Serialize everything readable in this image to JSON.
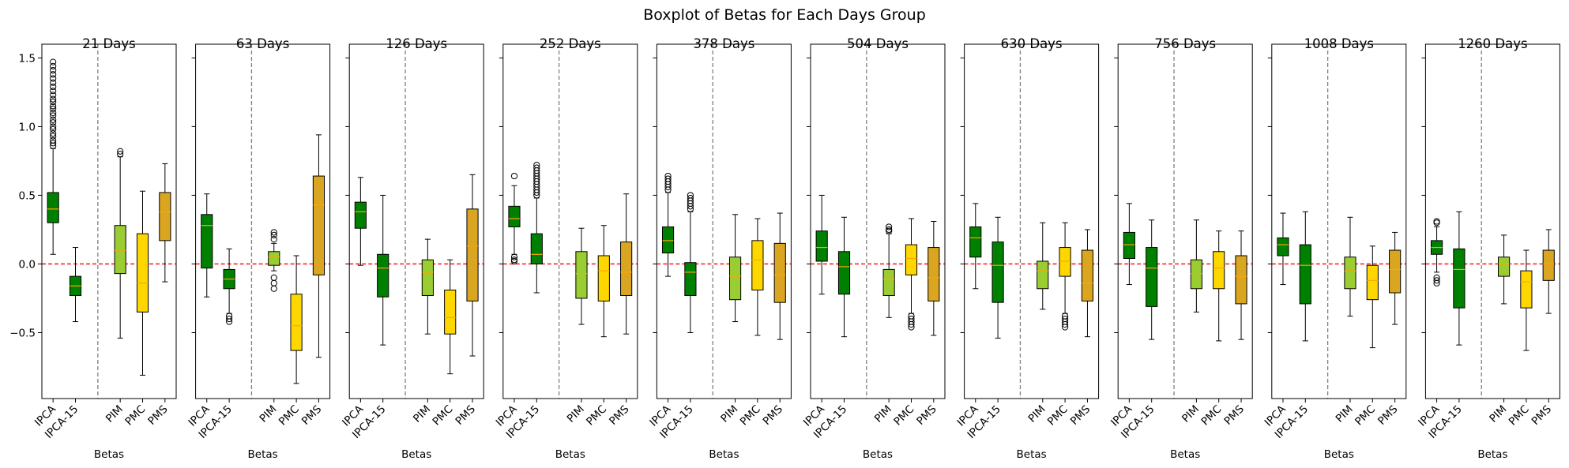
{
  "figure": {
    "title": "Boxplot of Betas for Each Days Group"
  },
  "colors": {
    "IPCA": "#008000",
    "IPCA-15": "#008000",
    "PIM": "#9ACD32",
    "PMC": "#FFD700",
    "PMS": "#DAA520",
    "median": "#FFA500",
    "zero_line": "#FF0000",
    "divider": "#808080"
  },
  "chart_data": {
    "type": "boxplot",
    "shared_y": true,
    "ylim": [
      -0.98,
      1.6
    ],
    "yticks": [
      -0.5,
      0.0,
      0.5,
      1.0,
      1.5
    ],
    "ytick_labels": [
      "−0.5",
      "0.0",
      "0.5",
      "1.0",
      "1.5"
    ],
    "categories": [
      "IPCA",
      "IPCA-15",
      "PIM",
      "PMC",
      "PMS"
    ],
    "xlabel": "Betas",
    "zero_line": 0,
    "panels": [
      {
        "title": "21 Days",
        "boxes": [
          {
            "name": "IPCA",
            "whislo": 0.07,
            "q1": 0.3,
            "med": 0.4,
            "q3": 0.52,
            "whishi": 0.84,
            "fliers_low": [],
            "fliers_high": [
              0.86,
              0.88,
              0.9,
              0.93,
              0.95,
              0.98,
              1.0,
              1.03,
              1.05,
              1.08,
              1.1,
              1.13,
              1.15,
              1.18,
              1.2,
              1.23,
              1.26,
              1.29,
              1.32,
              1.35,
              1.38,
              1.41,
              1.44,
              1.47
            ]
          },
          {
            "name": "IPCA-15",
            "whislo": -0.42,
            "q1": -0.23,
            "med": -0.16,
            "q3": -0.09,
            "whishi": 0.12,
            "fliers_low": [],
            "fliers_high": []
          },
          {
            "name": "PIM",
            "whislo": -0.54,
            "q1": -0.07,
            "med": 0.1,
            "q3": 0.28,
            "whishi": 0.78,
            "fliers_low": [],
            "fliers_high": [
              0.8,
              0.82
            ]
          },
          {
            "name": "PMC",
            "whislo": -0.81,
            "q1": -0.35,
            "med": -0.14,
            "q3": 0.22,
            "whishi": 0.53,
            "fliers_low": [],
            "fliers_high": []
          },
          {
            "name": "PMS",
            "whislo": -0.13,
            "q1": 0.17,
            "med": 0.38,
            "q3": 0.52,
            "whishi": 0.73,
            "fliers_low": [],
            "fliers_high": []
          }
        ]
      },
      {
        "title": "63 Days",
        "boxes": [
          {
            "name": "IPCA",
            "whislo": -0.24,
            "q1": -0.03,
            "med": 0.28,
            "q3": 0.36,
            "whishi": 0.51,
            "fliers_low": [],
            "fliers_high": []
          },
          {
            "name": "IPCA-15",
            "whislo": -0.36,
            "q1": -0.18,
            "med": -0.11,
            "q3": -0.04,
            "whishi": 0.11,
            "fliers_low": [
              -0.38,
              -0.4,
              -0.42
            ],
            "fliers_high": []
          },
          {
            "name": "PIM",
            "whislo": -0.05,
            "q1": -0.01,
            "med": 0.05,
            "q3": 0.09,
            "whishi": 0.15,
            "fliers_low": [
              -0.1,
              -0.14,
              -0.18
            ],
            "fliers_high": [
              0.18,
              0.21,
              0.23
            ]
          },
          {
            "name": "PMC",
            "whislo": -0.87,
            "q1": -0.63,
            "med": -0.45,
            "q3": -0.22,
            "whishi": 0.06,
            "fliers_low": [],
            "fliers_high": []
          },
          {
            "name": "PMS",
            "whislo": -0.68,
            "q1": -0.08,
            "med": 0.43,
            "q3": 0.64,
            "whishi": 0.94,
            "fliers_low": [],
            "fliers_high": []
          }
        ]
      },
      {
        "title": "126 Days",
        "boxes": [
          {
            "name": "IPCA",
            "whislo": -0.01,
            "q1": 0.26,
            "med": 0.38,
            "q3": 0.45,
            "whishi": 0.63,
            "fliers_low": [],
            "fliers_high": []
          },
          {
            "name": "IPCA-15",
            "whislo": -0.59,
            "q1": -0.24,
            "med": -0.03,
            "q3": 0.07,
            "whishi": 0.5,
            "fliers_low": [],
            "fliers_high": []
          },
          {
            "name": "PIM",
            "whislo": -0.51,
            "q1": -0.23,
            "med": -0.06,
            "q3": 0.03,
            "whishi": 0.18,
            "fliers_low": [],
            "fliers_high": []
          },
          {
            "name": "PMC",
            "whislo": -0.8,
            "q1": -0.51,
            "med": -0.39,
            "q3": -0.19,
            "whishi": 0.03,
            "fliers_low": [],
            "fliers_high": []
          },
          {
            "name": "PMS",
            "whislo": -0.67,
            "q1": -0.27,
            "med": 0.13,
            "q3": 0.4,
            "whishi": 0.65,
            "fliers_low": [],
            "fliers_high": []
          }
        ]
      },
      {
        "title": "252 Days",
        "boxes": [
          {
            "name": "IPCA",
            "whislo": 0.07,
            "q1": 0.27,
            "med": 0.33,
            "q3": 0.42,
            "whishi": 0.57,
            "fliers_low": [
              0.05,
              0.03,
              0.02
            ],
            "fliers_high": [
              0.64
            ]
          },
          {
            "name": "IPCA-15",
            "whislo": -0.21,
            "q1": 0.0,
            "med": 0.07,
            "q3": 0.22,
            "whishi": 0.48,
            "fliers_low": [],
            "fliers_high": [
              0.5,
              0.52,
              0.54,
              0.56,
              0.58,
              0.6,
              0.62,
              0.64,
              0.66,
              0.68,
              0.7,
              0.72
            ]
          },
          {
            "name": "PIM",
            "whislo": -0.44,
            "q1": -0.25,
            "med": -0.07,
            "q3": 0.09,
            "whishi": 0.26,
            "fliers_low": [],
            "fliers_high": []
          },
          {
            "name": "PMC",
            "whislo": -0.53,
            "q1": -0.27,
            "med": -0.05,
            "q3": 0.06,
            "whishi": 0.28,
            "fliers_low": [],
            "fliers_high": []
          },
          {
            "name": "PMS",
            "whislo": -0.51,
            "q1": -0.23,
            "med": -0.06,
            "q3": 0.16,
            "whishi": 0.51,
            "fliers_low": [],
            "fliers_high": []
          }
        ]
      },
      {
        "title": "378 Days",
        "boxes": [
          {
            "name": "IPCA",
            "whislo": -0.09,
            "q1": 0.08,
            "med": 0.17,
            "q3": 0.27,
            "whishi": 0.52,
            "fliers_low": [],
            "fliers_high": [
              0.54,
              0.56,
              0.58,
              0.6,
              0.62,
              0.64
            ]
          },
          {
            "name": "IPCA-15",
            "whislo": -0.5,
            "q1": -0.23,
            "med": -0.06,
            "q3": 0.01,
            "whishi": 0.38,
            "fliers_low": [],
            "fliers_high": [
              0.4,
              0.42,
              0.44,
              0.46,
              0.48,
              0.5
            ]
          },
          {
            "name": "PIM",
            "whislo": -0.42,
            "q1": -0.26,
            "med": -0.09,
            "q3": 0.05,
            "whishi": 0.36,
            "fliers_low": [],
            "fliers_high": []
          },
          {
            "name": "PMC",
            "whislo": -0.52,
            "q1": -0.19,
            "med": 0.03,
            "q3": 0.17,
            "whishi": 0.33,
            "fliers_low": [],
            "fliers_high": []
          },
          {
            "name": "PMS",
            "whislo": -0.55,
            "q1": -0.28,
            "med": -0.08,
            "q3": 0.15,
            "whishi": 0.37,
            "fliers_low": [],
            "fliers_high": []
          }
        ]
      },
      {
        "title": "504 Days",
        "boxes": [
          {
            "name": "IPCA",
            "whislo": -0.22,
            "q1": 0.02,
            "med": 0.12,
            "q3": 0.24,
            "whishi": 0.5,
            "fliers_low": [],
            "fliers_high": []
          },
          {
            "name": "IPCA-15",
            "whislo": -0.53,
            "q1": -0.22,
            "med": -0.02,
            "q3": 0.09,
            "whishi": 0.34,
            "fliers_low": [],
            "fliers_high": []
          },
          {
            "name": "PIM",
            "whislo": -0.39,
            "q1": -0.23,
            "med": -0.11,
            "q3": -0.04,
            "whishi": 0.22,
            "fliers_low": [],
            "fliers_high": [
              0.24,
              0.25,
              0.27
            ]
          },
          {
            "name": "PMC",
            "whislo": -0.36,
            "q1": -0.08,
            "med": 0.04,
            "q3": 0.14,
            "whishi": 0.33,
            "fliers_low": [
              -0.38,
              -0.4,
              -0.42,
              -0.44,
              -0.46
            ],
            "fliers_high": []
          },
          {
            "name": "PMS",
            "whislo": -0.52,
            "q1": -0.27,
            "med": -0.1,
            "q3": 0.12,
            "whishi": 0.31,
            "fliers_low": [],
            "fliers_high": []
          }
        ]
      },
      {
        "title": "630 Days",
        "boxes": [
          {
            "name": "IPCA",
            "whislo": -0.18,
            "q1": 0.05,
            "med": 0.19,
            "q3": 0.27,
            "whishi": 0.44,
            "fliers_low": [],
            "fliers_high": []
          },
          {
            "name": "IPCA-15",
            "whislo": -0.54,
            "q1": -0.28,
            "med": -0.01,
            "q3": 0.16,
            "whishi": 0.34,
            "fliers_low": [],
            "fliers_high": []
          },
          {
            "name": "PIM",
            "whislo": -0.33,
            "q1": -0.18,
            "med": -0.05,
            "q3": 0.02,
            "whishi": 0.3,
            "fliers_low": [],
            "fliers_high": []
          },
          {
            "name": "PMC",
            "whislo": -0.36,
            "q1": -0.09,
            "med": 0.02,
            "q3": 0.12,
            "whishi": 0.3,
            "fliers_low": [
              -0.38,
              -0.4,
              -0.42,
              -0.44,
              -0.46
            ],
            "fliers_high": []
          },
          {
            "name": "PMS",
            "whislo": -0.53,
            "q1": -0.27,
            "med": -0.14,
            "q3": 0.1,
            "whishi": 0.25,
            "fliers_low": [],
            "fliers_high": []
          }
        ]
      },
      {
        "title": "756 Days",
        "boxes": [
          {
            "name": "IPCA",
            "whislo": -0.15,
            "q1": 0.04,
            "med": 0.14,
            "q3": 0.23,
            "whishi": 0.44,
            "fliers_low": [],
            "fliers_high": []
          },
          {
            "name": "IPCA-15",
            "whislo": -0.55,
            "q1": -0.31,
            "med": -0.03,
            "q3": 0.12,
            "whishi": 0.32,
            "fliers_low": [],
            "fliers_high": []
          },
          {
            "name": "PIM",
            "whislo": -0.35,
            "q1": -0.18,
            "med": -0.07,
            "q3": 0.03,
            "whishi": 0.32,
            "fliers_low": [],
            "fliers_high": []
          },
          {
            "name": "PMC",
            "whislo": -0.56,
            "q1": -0.18,
            "med": -0.03,
            "q3": 0.09,
            "whishi": 0.24,
            "fliers_low": [],
            "fliers_high": []
          },
          {
            "name": "PMS",
            "whislo": -0.55,
            "q1": -0.29,
            "med": -0.09,
            "q3": 0.06,
            "whishi": 0.24,
            "fliers_low": [],
            "fliers_high": []
          }
        ]
      },
      {
        "title": "1008 Days",
        "boxes": [
          {
            "name": "IPCA",
            "whislo": -0.15,
            "q1": 0.06,
            "med": 0.14,
            "q3": 0.19,
            "whishi": 0.37,
            "fliers_low": [],
            "fliers_high": []
          },
          {
            "name": "IPCA-15",
            "whislo": -0.56,
            "q1": -0.29,
            "med": -0.01,
            "q3": 0.14,
            "whishi": 0.38,
            "fliers_low": [],
            "fliers_high": []
          },
          {
            "name": "PIM",
            "whislo": -0.38,
            "q1": -0.18,
            "med": -0.05,
            "q3": 0.05,
            "whishi": 0.34,
            "fliers_low": [],
            "fliers_high": []
          },
          {
            "name": "PMC",
            "whislo": -0.61,
            "q1": -0.26,
            "med": -0.12,
            "q3": -0.01,
            "whishi": 0.13,
            "fliers_low": [],
            "fliers_high": []
          },
          {
            "name": "PMS",
            "whislo": -0.44,
            "q1": -0.21,
            "med": -0.04,
            "q3": 0.1,
            "whishi": 0.23,
            "fliers_low": [],
            "fliers_high": []
          }
        ]
      },
      {
        "title": "1260 Days",
        "boxes": [
          {
            "name": "IPCA",
            "whislo": -0.06,
            "q1": 0.07,
            "med": 0.12,
            "q3": 0.17,
            "whishi": 0.27,
            "fliers_low": [
              -0.1,
              -0.12,
              -0.14
            ],
            "fliers_high": [
              0.3,
              0.31
            ]
          },
          {
            "name": "IPCA-15",
            "whislo": -0.59,
            "q1": -0.32,
            "med": -0.04,
            "q3": 0.11,
            "whishi": 0.38,
            "fliers_low": [],
            "fliers_high": []
          },
          {
            "name": "PIM",
            "whislo": -0.29,
            "q1": -0.09,
            "med": 0.0,
            "q3": 0.05,
            "whishi": 0.21,
            "fliers_low": [],
            "fliers_high": []
          },
          {
            "name": "PMC",
            "whislo": -0.63,
            "q1": -0.32,
            "med": -0.13,
            "q3": -0.05,
            "whishi": 0.1,
            "fliers_low": [],
            "fliers_high": []
          },
          {
            "name": "PMS",
            "whislo": -0.36,
            "q1": -0.12,
            "med": 0.0,
            "q3": 0.1,
            "whishi": 0.25,
            "fliers_low": [],
            "fliers_high": []
          }
        ]
      }
    ]
  }
}
